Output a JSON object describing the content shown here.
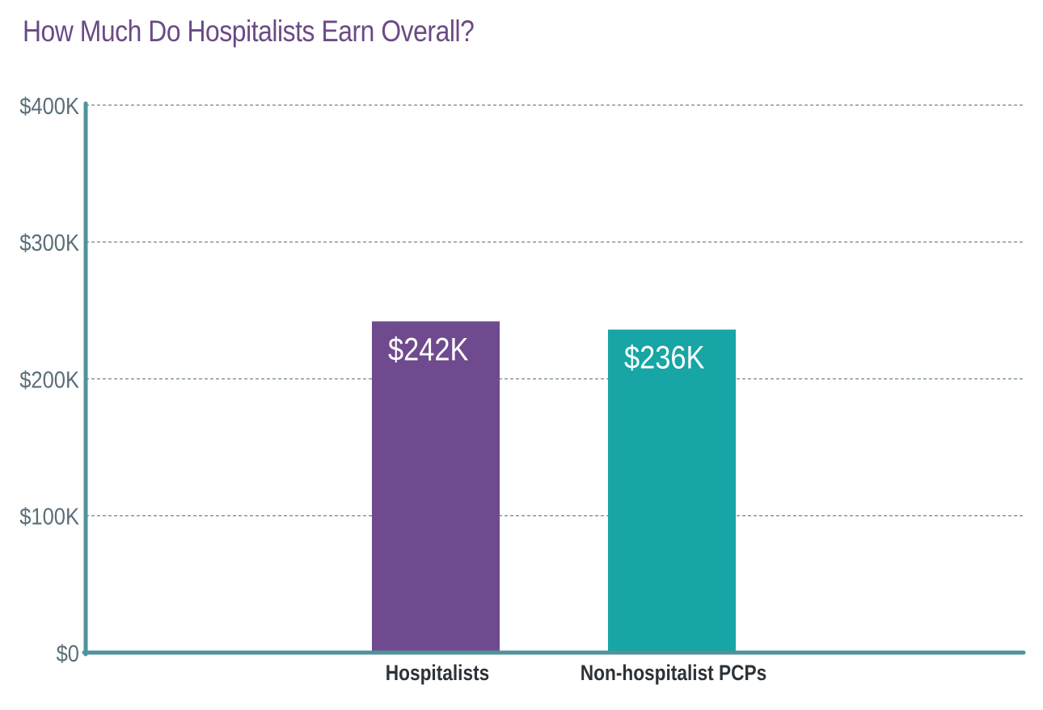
{
  "title": "How Much Do Hospitalists Earn Overall?",
  "chart_data": {
    "type": "bar",
    "title": "How Much Do Hospitalists Earn Overall?",
    "xlabel": "",
    "ylabel": "",
    "categories": [
      "Hospitalists",
      "Non-hospitalist PCPs"
    ],
    "values": [
      242,
      236
    ],
    "value_labels": [
      "$242K",
      "$236K"
    ],
    "bar_colors": [
      "#6f4a8e",
      "#17a5a5"
    ],
    "ylim": [
      0,
      400
    ],
    "yticks": [
      0,
      100,
      200,
      300,
      400
    ],
    "ytick_labels": [
      "$0",
      "$100K",
      "$200K",
      "$300K",
      "$400K"
    ],
    "grid": true,
    "grid_style": "dashed",
    "legend": "none",
    "axis_color": "#4f929c"
  }
}
